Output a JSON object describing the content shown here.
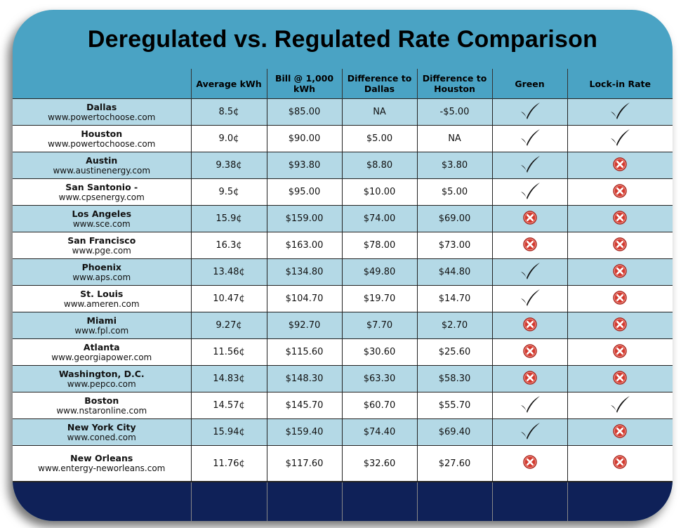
{
  "title": "Deregulated vs. Regulated Rate Comparison",
  "colors": {
    "header_bg": "#4aa3c4",
    "row_alt": "#b4d9e6",
    "row_white": "#ffffff",
    "footer": "#0f2158",
    "x_red": "#d23a2f"
  },
  "columns": [
    "",
    "Average kWh",
    "Bill @ 1,000 kWh",
    "Difference to Dallas",
    "Difference to Houston",
    "Green",
    "Lock-in Rate"
  ],
  "rows": [
    {
      "city": "Dallas",
      "url": "www.powertochoose.com",
      "avg": "8.5¢",
      "bill": "$85.00",
      "diff_dallas": "NA",
      "diff_houston": "-$5.00",
      "green": "check-icon",
      "lockin": "check-icon"
    },
    {
      "city": "Houston",
      "url": "www.powertochoose.com",
      "avg": "9.0¢",
      "bill": "$90.00",
      "diff_dallas": "$5.00",
      "diff_houston": "NA",
      "green": "check-icon",
      "lockin": "check-icon"
    },
    {
      "city": "Austin",
      "url": "www.austinenergy.com",
      "avg": "9.38¢",
      "bill": "$93.80",
      "diff_dallas": "$8.80",
      "diff_houston": "$3.80",
      "green": "check-icon",
      "lockin": "x-icon"
    },
    {
      "city": "San Santonio -",
      "url": "www.cpsenergy.com",
      "avg": "9.5¢",
      "bill": "$95.00",
      "diff_dallas": "$10.00",
      "diff_houston": "$5.00",
      "green": "check-icon",
      "lockin": "x-icon"
    },
    {
      "city": "Los Angeles",
      "url": "www.sce.com",
      "avg": "15.9¢",
      "bill": "$159.00",
      "diff_dallas": "$74.00",
      "diff_houston": "$69.00",
      "green": "x-icon",
      "lockin": "x-icon"
    },
    {
      "city": "San Francisco",
      "url": "www.pge.com",
      "avg": "16.3¢",
      "bill": "$163.00",
      "diff_dallas": "$78.00",
      "diff_houston": "$73.00",
      "green": "x-icon",
      "lockin": "x-icon"
    },
    {
      "city": "Phoenix",
      "url": "www.aps.com",
      "avg": "13.48¢",
      "bill": "$134.80",
      "diff_dallas": "$49.80",
      "diff_houston": "$44.80",
      "green": "check-icon",
      "lockin": "x-icon"
    },
    {
      "city": "St. Louis",
      "url": "www.ameren.com",
      "avg": "10.47¢",
      "bill": "$104.70",
      "diff_dallas": "$19.70",
      "diff_houston": "$14.70",
      "green": "check-icon",
      "lockin": "x-icon"
    },
    {
      "city": "Miami",
      "url": "www.fpl.com",
      "avg": "9.27¢",
      "bill": "$92.70",
      "diff_dallas": "$7.70",
      "diff_houston": "$2.70",
      "green": "x-icon",
      "lockin": "x-icon"
    },
    {
      "city": "Atlanta",
      "url": "www.georgiapower.com",
      "avg": "11.56¢",
      "bill": "$115.60",
      "diff_dallas": "$30.60",
      "diff_houston": "$25.60",
      "green": "x-icon",
      "lockin": "x-icon"
    },
    {
      "city": "Washington, D.C.",
      "url": "www.pepco.com",
      "avg": "14.83¢",
      "bill": "$148.30",
      "diff_dallas": "$63.30",
      "diff_houston": "$58.30",
      "green": "x-icon",
      "lockin": "x-icon"
    },
    {
      "city": "Boston",
      "url": "www.nstaronline.com",
      "avg": "14.57¢",
      "bill": "$145.70",
      "diff_dallas": "$60.70",
      "diff_houston": "$55.70",
      "green": "check-icon",
      "lockin": "check-icon"
    },
    {
      "city": "New York City",
      "url": "www.coned.com",
      "avg": "15.94¢",
      "bill": "$159.40",
      "diff_dallas": "$74.40",
      "diff_houston": "$69.40",
      "green": "check-icon",
      "lockin": "x-icon"
    },
    {
      "city": "New Orleans",
      "url": "www.entergy-neworleans.com",
      "avg": "11.76¢",
      "bill": "$117.60",
      "diff_dallas": "$32.60",
      "diff_houston": "$27.60",
      "green": "x-icon",
      "lockin": "x-icon"
    }
  ]
}
